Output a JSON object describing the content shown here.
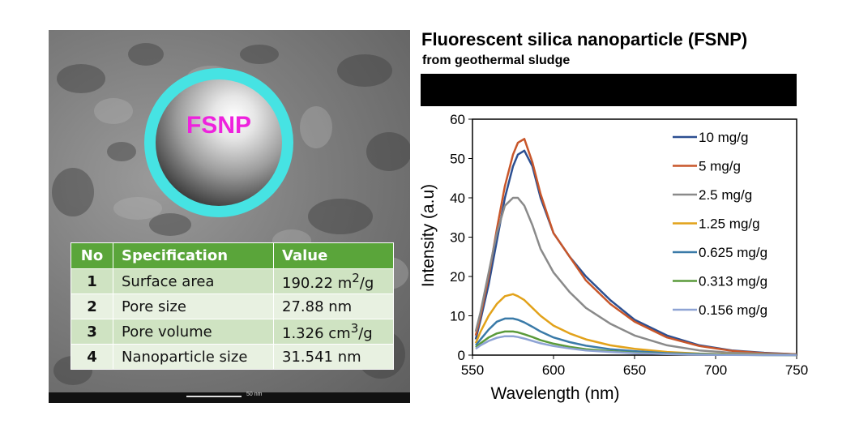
{
  "header": {
    "title": "Fluorescent silica nanoparticle (FSNP)",
    "subtitle": "from geothermal sludge"
  },
  "micrograph": {
    "sphere_label": "FSNP",
    "scale_bar_label": "50 nm"
  },
  "spec_table": {
    "headers": [
      "No",
      "Specification",
      "Value"
    ],
    "rows": [
      {
        "no": "1",
        "spec": "Surface area",
        "value": "190.22 m",
        "sup": "2",
        "tail": "/g"
      },
      {
        "no": "2",
        "spec": "Pore size",
        "value": "27.88 nm",
        "sup": "",
        "tail": ""
      },
      {
        "no": "3",
        "spec": "Pore volume",
        "value": "1.326 cm",
        "sup": "3",
        "tail": "/g"
      },
      {
        "no": "4",
        "spec": "Nanoparticle size",
        "value": "31.541 nm",
        "sup": "",
        "tail": ""
      }
    ]
  },
  "chart_data": {
    "type": "line",
    "title": "",
    "xlabel": "Wavelength (nm)",
    "ylabel": "Intensity (a.u)",
    "xlim": [
      550,
      750
    ],
    "ylim": [
      0,
      60
    ],
    "xticks": [
      550,
      600,
      650,
      700,
      750
    ],
    "yticks": [
      0,
      10,
      20,
      30,
      40,
      50,
      60
    ],
    "grid": false,
    "legend_position": "top-right",
    "x": [
      552,
      555,
      560,
      565,
      570,
      575,
      578,
      582,
      587,
      592,
      600,
      610,
      620,
      635,
      650,
      670,
      690,
      710,
      730,
      750
    ],
    "series": [
      {
        "name": "10 mg/g",
        "color": "#2c4f91",
        "values": [
          4,
          9,
          18,
          29,
          40,
          48,
          51,
          52,
          48,
          40,
          31,
          25,
          20,
          14,
          9,
          5,
          2.5,
          1.2,
          0.6,
          0.2
        ]
      },
      {
        "name": "5 mg/g",
        "color": "#c8562a",
        "values": [
          5,
          10,
          20,
          32,
          43,
          51,
          54,
          55,
          49,
          41,
          31,
          25,
          19,
          13,
          8.5,
          4.5,
          2.3,
          1.1,
          0.5,
          0.2
        ]
      },
      {
        "name": "2.5 mg/g",
        "color": "#8a8a8a",
        "values": [
          6,
          11,
          21,
          31,
          38,
          40,
          40,
          38,
          33,
          27,
          21,
          16,
          12,
          8,
          5,
          2.5,
          1.2,
          0.6,
          0.3,
          0.1
        ]
      },
      {
        "name": "1.25 mg/g",
        "color": "#e2a21a",
        "values": [
          3,
          6,
          10,
          13,
          15,
          15.5,
          15,
          14,
          12,
          10,
          7.5,
          5.5,
          4,
          2.5,
          1.6,
          0.8,
          0.4,
          0.2,
          0.1,
          0
        ]
      },
      {
        "name": "0.625 mg/g",
        "color": "#3a7aa8",
        "values": [
          2.5,
          4,
          6.5,
          8.5,
          9.3,
          9.3,
          9,
          8.3,
          7.2,
          6,
          4.5,
          3.3,
          2.4,
          1.5,
          1,
          0.5,
          0.3,
          0.1,
          0.05,
          0
        ]
      },
      {
        "name": "0.313 mg/g",
        "color": "#5a9a3a",
        "values": [
          2,
          3,
          4.5,
          5.5,
          6,
          6,
          5.8,
          5.3,
          4.6,
          3.8,
          2.9,
          2.1,
          1.5,
          1,
          0.6,
          0.3,
          0.2,
          0.1,
          0,
          0
        ]
      },
      {
        "name": "0.156 mg/g",
        "color": "#8ea3d4",
        "values": [
          1.6,
          2.5,
          3.6,
          4.4,
          4.8,
          4.8,
          4.6,
          4.2,
          3.6,
          3,
          2.3,
          1.7,
          1.2,
          0.8,
          0.5,
          0.25,
          0.1,
          0.05,
          0,
          0
        ]
      }
    ]
  }
}
